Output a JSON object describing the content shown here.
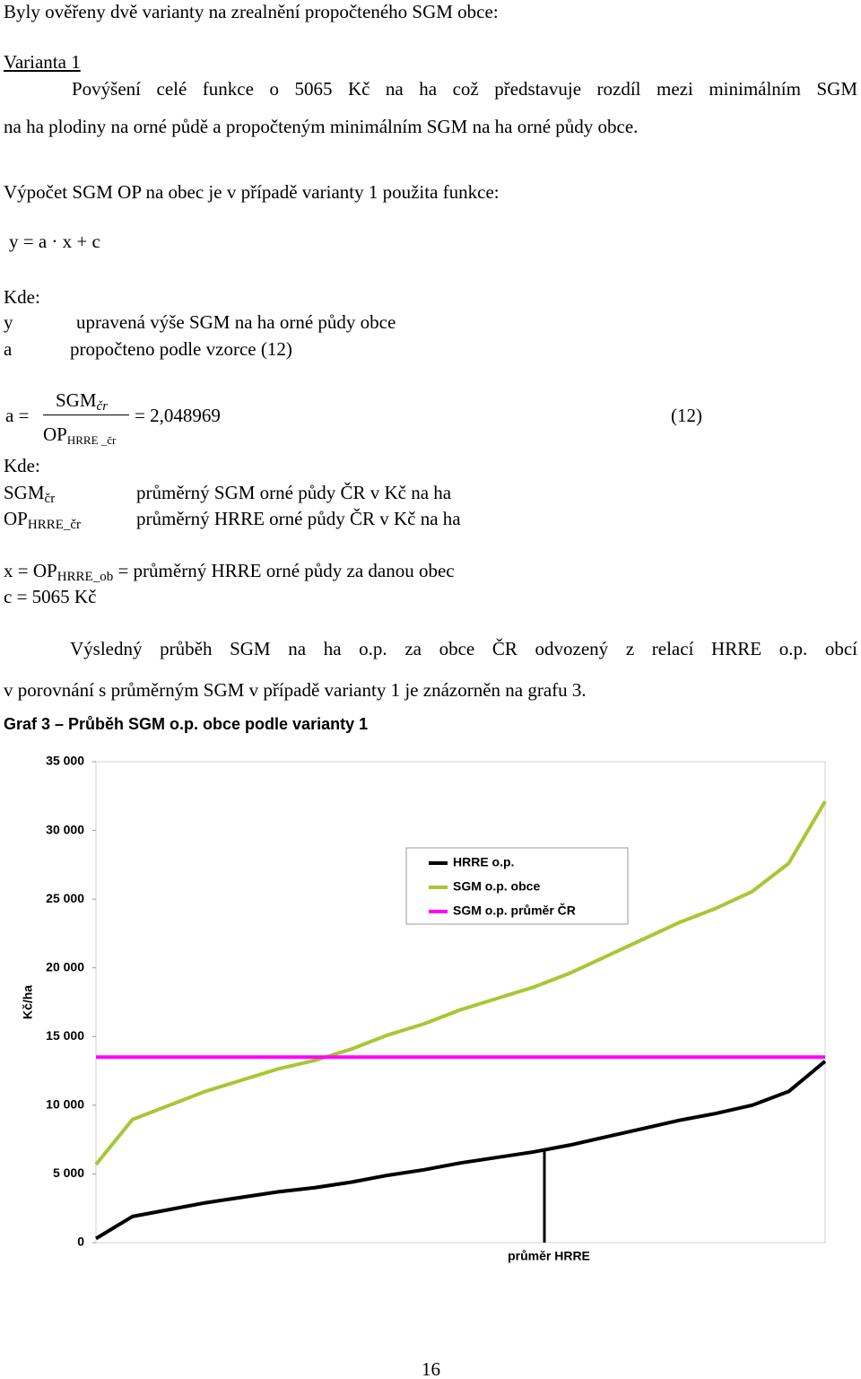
{
  "intro": "Byly ověřeny dvě varianty na zrealnění propočteného SGM obce:",
  "variant": {
    "heading": "Varianta 1",
    "line1": "Povýšení celé funkce o 5065 Kč na ha což představuje rozdíl mezi minimálním SGM",
    "line2": "na ha plodiny na orné půdě a propočteným minimálním SGM na ha orné půdy obce."
  },
  "function_intro": "Výpočet SGM OP na obec je v případě varianty 1 použita funkce:",
  "function": "y = a · x + c",
  "where1": {
    "label": "Kde:",
    "rows": [
      [
        "y",
        "upravená výše SGM na ha orné půdy obce"
      ],
      [
        "a",
        "propočteno podle vzorce (12)"
      ]
    ]
  },
  "formula": {
    "lhs": "a =",
    "num": "SGM",
    "num_sub": "čr",
    "den": "OP",
    "den_sub": "HRRE _čr",
    "rhs": "= 2,048969",
    "number": "(12)"
  },
  "where2": {
    "label": "Kde:",
    "rows": [
      {
        "symbol": "SGM",
        "sub": "čr",
        "text": "průměrný SGM orné půdy ČR v Kč na ha"
      },
      {
        "symbol": "OP",
        "sub": "HRRE_čr",
        "text": "průměrný HRRE orné půdy ČR v Kč na ha"
      }
    ]
  },
  "x_def": {
    "lhs": "x = OP",
    "sub": "HRRE_ob",
    "rhs": "= průměrný HRRE orné půdy za danou obec"
  },
  "c_def": "c = 5065 Kč",
  "result": {
    "line1": "Výsledný průběh SGM na ha o.p. za obce ČR odvozený z relací HRRE o.p. obcí",
    "line2": "v porovnání s průměrným SGM v případě varianty 1 je znázorněn na grafu 3."
  },
  "chart_data": {
    "type": "line",
    "title": "Graf 3 – Průběh SGM o.p. obce podle varianty 1",
    "y_label": "Kč/ha",
    "annotation": "průměr HRRE",
    "legend": "upper right",
    "ylim": [
      0,
      35000
    ],
    "yticks": [
      0,
      {
        "value": 5000,
        "label": "5 000"
      },
      {
        "value": 10000,
        "label": "10 000"
      },
      {
        "value": 15000,
        "label": "15 000"
      },
      {
        "value": 20000,
        "label": "20 000"
      },
      {
        "value": 25000,
        "label": "25 000"
      },
      {
        "value": 30000,
        "label": "30 000"
      },
      {
        "value": 35000,
        "label": "35 000"
      }
    ],
    "series": [
      {
        "name": "HRRE o.p.",
        "color": "#000000",
        "values": [
          300,
          1900,
          2400,
          2900,
          3300,
          3700,
          4000,
          4400,
          4900,
          5300,
          5800,
          6200,
          6600,
          7100,
          7700,
          8300,
          8900,
          9400,
          10000,
          11000,
          13200
        ]
      },
      {
        "name": "SGM o.p. obce",
        "color": "#a6c834",
        "values": [
          5680,
          8958,
          9982,
          11007,
          11827,
          12646,
          13261,
          14081,
          15105,
          15925,
          16949,
          17769,
          18588,
          19613,
          20842,
          22071,
          23300,
          24325,
          25555,
          27604,
          32111
        ]
      },
      {
        "name": "SGM o.p. průměr ČR",
        "color": "#ff00ff",
        "values": [
          13500,
          13500,
          13500,
          13500,
          13500,
          13500,
          13500,
          13500,
          13500,
          13500,
          13500,
          13500,
          13500,
          13500,
          13500,
          13500,
          13500,
          13500,
          13500,
          13500,
          13500
        ]
      }
    ]
  },
  "page_number": "16"
}
